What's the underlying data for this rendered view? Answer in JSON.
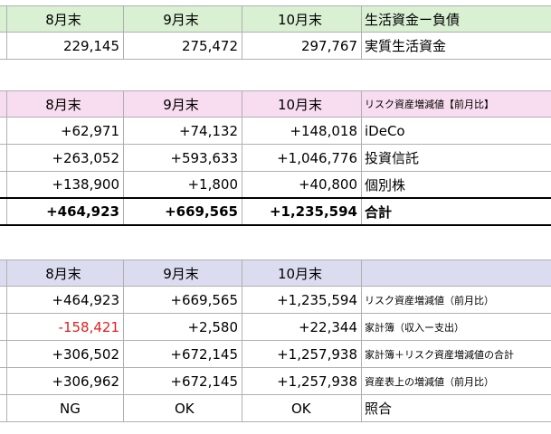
{
  "table1": {
    "header": {
      "m1": "8月末",
      "m2": "9月末",
      "m3": "10月末",
      "label": "生活資金ー負債"
    },
    "rows": [
      {
        "v1": "229,145",
        "v2": "275,472",
        "v3": "297,767",
        "label": "実質生活資金"
      }
    ]
  },
  "table2": {
    "header": {
      "m1": "8月末",
      "m2": "9月末",
      "m3": "10月末",
      "label": "リスク資産増減値【前月比】"
    },
    "rows": [
      {
        "v1": "+62,971",
        "v2": "+74,132",
        "v3": "+148,018",
        "label": "iDeCo"
      },
      {
        "v1": "+263,052",
        "v2": "+593,633",
        "v3": "+1,046,776",
        "label": "投資信託"
      },
      {
        "v1": "+138,900",
        "v2": "+1,800",
        "v3": "+40,800",
        "label": "個別株"
      },
      {
        "v1": "+464,923",
        "v2": "+669,565",
        "v3": "+1,235,594",
        "label": "合計"
      }
    ]
  },
  "table3": {
    "header": {
      "m1": "8月末",
      "m2": "9月末",
      "m3": "10月末",
      "label": ""
    },
    "rows": [
      {
        "v1": "+464,923",
        "v2": "+669,565",
        "v3": "+1,235,594",
        "label": "リスク資産増減値（前月比）"
      },
      {
        "v1": "-158,421",
        "v2": "+2,580",
        "v3": "+22,344",
        "label": "家計簿（収入ー支出）"
      },
      {
        "v1": "+306,502",
        "v2": "+672,145",
        "v3": "+1,257,938",
        "label": "家計簿＋リスク資産増減値の合計"
      },
      {
        "v1": "+306,962",
        "v2": "+672,145",
        "v3": "+1,257,938",
        "label": "資産表上の増減値（前月比）"
      },
      {
        "v1": "NG",
        "v2": "OK",
        "v3": "OK",
        "label": "照合"
      }
    ]
  },
  "colors": {
    "green_header": "#d9f0d3",
    "pink_header": "#f8dcef",
    "blue_header": "#dcdcf0",
    "negative": "#e0201e"
  }
}
